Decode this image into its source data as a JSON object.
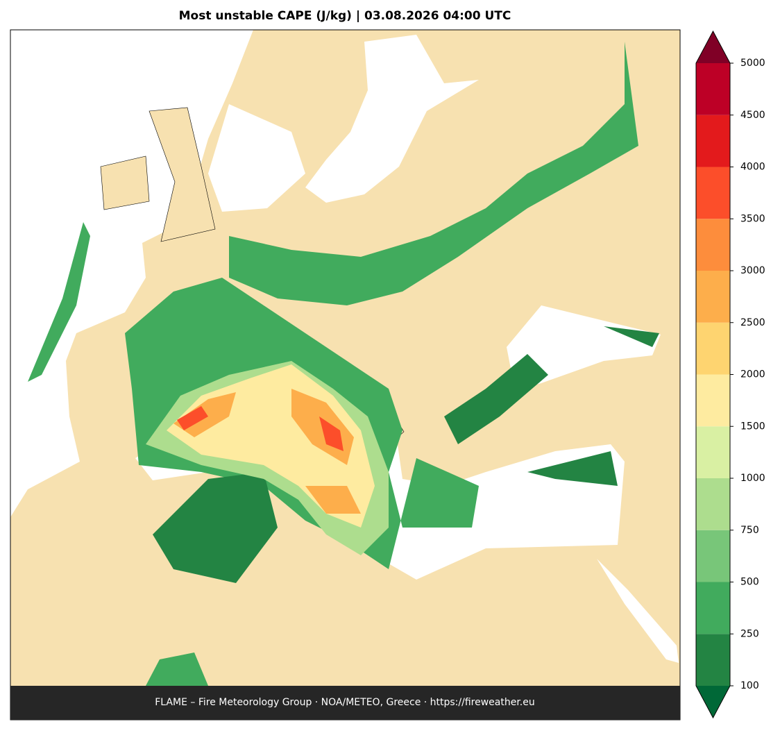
{
  "title": "Most unstable CAPE (J/kg)  |  03.08.2026 04:00 UTC",
  "footer": "FLAME – Fire Meteorology Group · NOA/METEO, Greece · https://fireweather.eu",
  "colorbar": {
    "ticks": [
      100,
      250,
      500,
      750,
      1000,
      1500,
      2000,
      2500,
      3000,
      3500,
      4000,
      4500,
      5000
    ],
    "colors": [
      "#238443",
      "#41ab5d",
      "#78c679",
      "#addd8e",
      "#d9f0a3",
      "#feeba0",
      "#fed470",
      "#fdae4b",
      "#fd8d3c",
      "#fc4e2a",
      "#e31a1c",
      "#bd0026"
    ],
    "under_color": "#006837",
    "over_color": "#800026"
  }
}
